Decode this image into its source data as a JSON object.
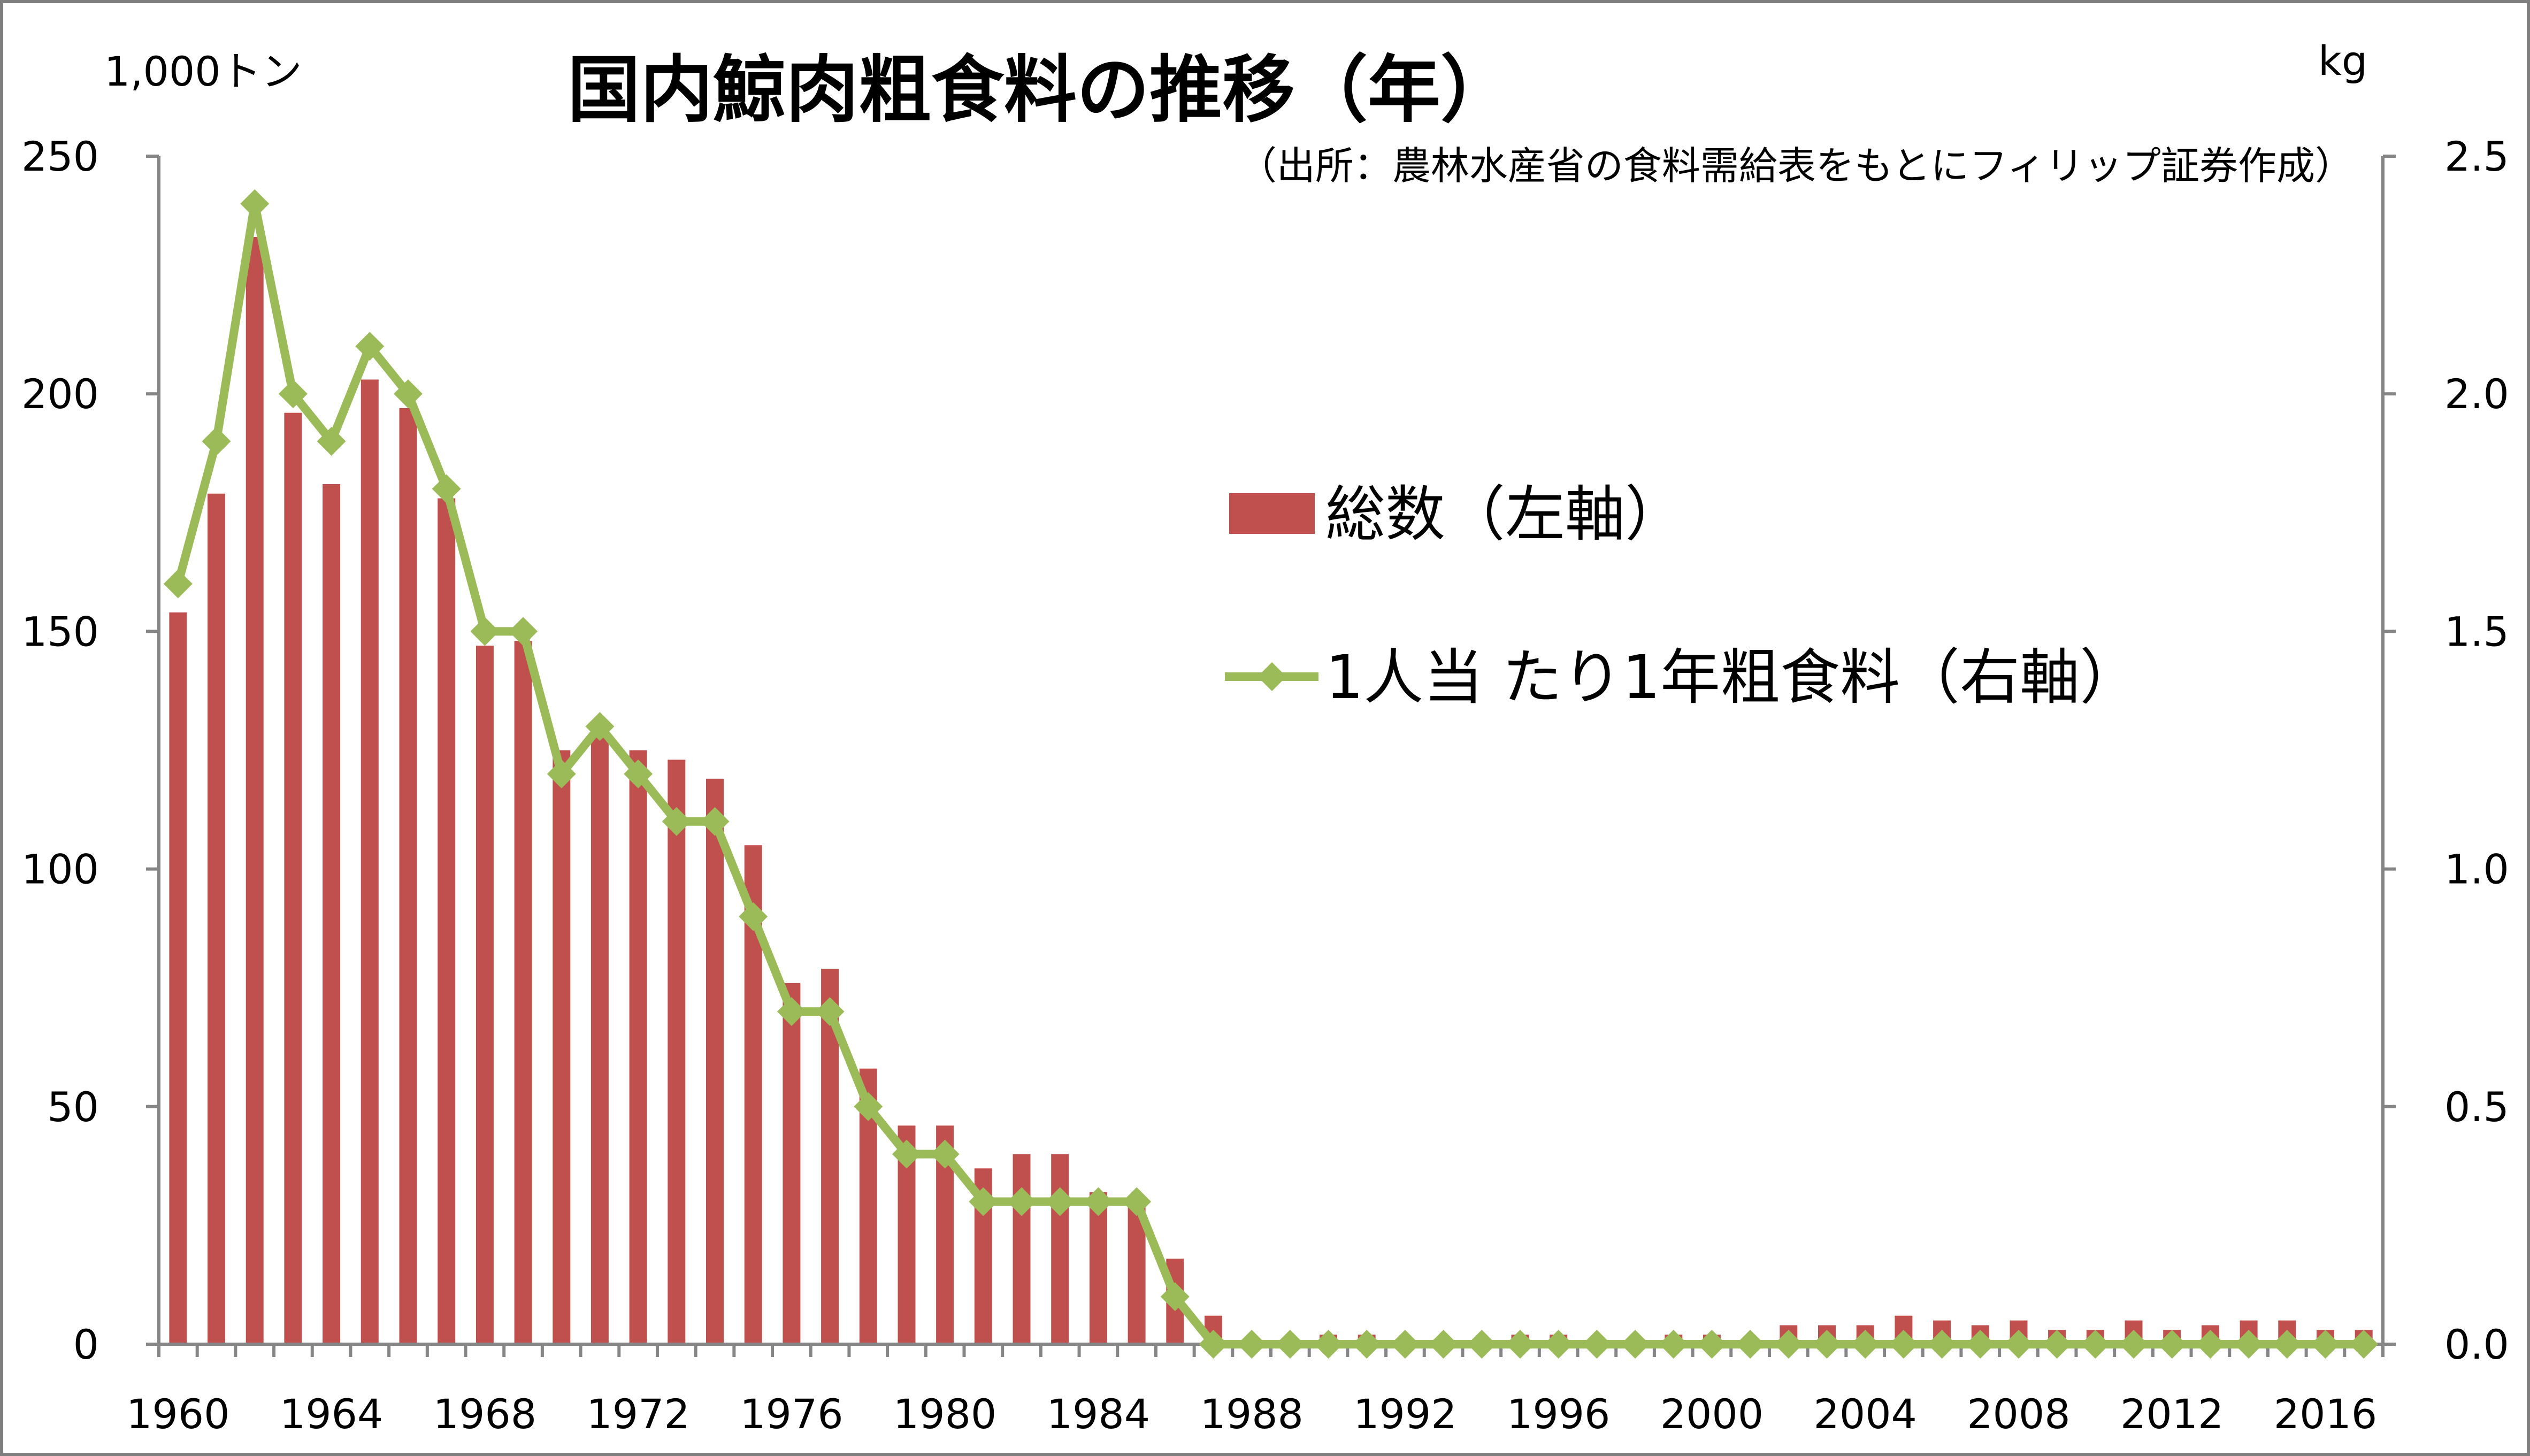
{
  "chart_data": {
    "type": "bar+line",
    "title": "国内鯨肉粗食料の推移（年）",
    "subtitle": "（出所：農林水産省の食料需給表をもとにフィリップ証券作成）",
    "y_left_unit": "1,000トン",
    "y_right_unit": "kg",
    "ylim_left": [
      0,
      250
    ],
    "ylim_right": [
      0,
      2.5
    ],
    "y_left_ticks": [
      "0",
      "50",
      "100",
      "150",
      "200",
      "250"
    ],
    "y_right_ticks": [
      "0.0",
      "0.5",
      "1.0",
      "1.5",
      "2.0",
      "2.5"
    ],
    "x_tick_labels": [
      "1960",
      "1964",
      "1968",
      "1972",
      "1976",
      "1980",
      "1984",
      "1988",
      "1992",
      "1996",
      "2000",
      "2004",
      "2008",
      "2012",
      "2016"
    ],
    "x": [
      1960,
      1961,
      1962,
      1963,
      1964,
      1965,
      1966,
      1967,
      1968,
      1969,
      1970,
      1971,
      1972,
      1973,
      1974,
      1975,
      1976,
      1977,
      1978,
      1979,
      1980,
      1981,
      1982,
      1983,
      1984,
      1985,
      1986,
      1987,
      1988,
      1989,
      1990,
      1991,
      1992,
      1993,
      1994,
      1995,
      1996,
      1997,
      1998,
      1999,
      2000,
      2001,
      2002,
      2003,
      2004,
      2005,
      2006,
      2007,
      2008,
      2009,
      2010,
      2011,
      2012,
      2013,
      2014,
      2015,
      2016,
      2017
    ],
    "grid": false,
    "series": [
      {
        "name": "総数（左軸）",
        "type": "bar",
        "axis": "left",
        "color": "#c0504d",
        "values": [
          154,
          179,
          233,
          196,
          181,
          203,
          197,
          178,
          147,
          148,
          125,
          128,
          125,
          123,
          119,
          105,
          76,
          79,
          58,
          46,
          46,
          37,
          40,
          40,
          32,
          31,
          18,
          6,
          1,
          1,
          2,
          2,
          1,
          1,
          1,
          2,
          2,
          1,
          1,
          2,
          2,
          1,
          4,
          4,
          4,
          6,
          5,
          4,
          5,
          3,
          3,
          5,
          3,
          4,
          5,
          5,
          3,
          3
        ]
      },
      {
        "name": "1人当 たり1年粗食料（右軸）",
        "type": "line",
        "axis": "right",
        "color": "#9bbb59",
        "marker": "diamond",
        "values": [
          1.6,
          1.9,
          2.4,
          2.0,
          1.9,
          2.1,
          2.0,
          1.8,
          1.5,
          1.5,
          1.2,
          1.3,
          1.2,
          1.1,
          1.1,
          0.9,
          0.7,
          0.7,
          0.5,
          0.4,
          0.4,
          0.3,
          0.3,
          0.3,
          0.3,
          0.3,
          0.1,
          0.0,
          0.0,
          0.0,
          0.0,
          0.0,
          0.0,
          0.0,
          0.0,
          0.0,
          0.0,
          0.0,
          0.0,
          0.0,
          0.0,
          0.0,
          0.0,
          0.0,
          0.0,
          0.0,
          0.0,
          0.0,
          0.0,
          0.0,
          0.0,
          0.0,
          0.0,
          0.0,
          0.0,
          0.0,
          0.0,
          0.0
        ]
      }
    ],
    "legend": {
      "placement": "center-right",
      "items": [
        "総数（左軸）",
        "1人当 たり1年粗食料（右軸）"
      ]
    }
  }
}
